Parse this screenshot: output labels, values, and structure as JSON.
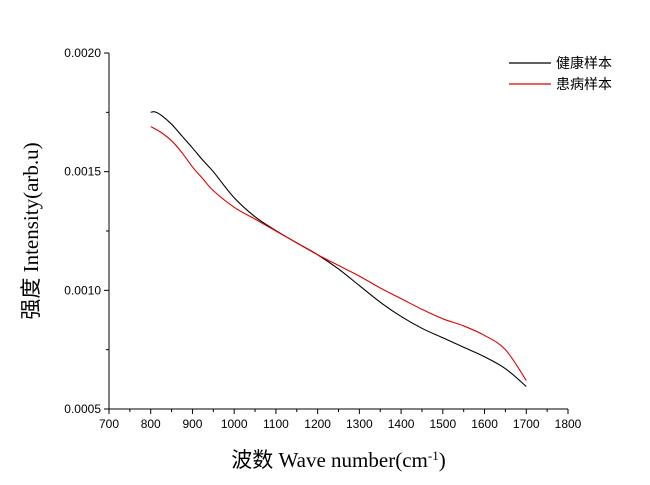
{
  "chart_data": {
    "type": "line",
    "title": "",
    "xlabel": "波数 Wave number(cm",
    "xlabel_sup": "-1",
    "xlabel_close": ")",
    "ylabel": "强度 Intensity(arb.u)",
    "xlim": [
      700,
      1800
    ],
    "ylim": [
      0.0005,
      0.002
    ],
    "x_ticks": [
      700,
      800,
      900,
      1000,
      1100,
      1200,
      1300,
      1400,
      1500,
      1600,
      1700,
      1800
    ],
    "y_ticks": [
      "0.0005",
      "0.0010",
      "0.0015",
      "0.0020"
    ],
    "grid": false,
    "legend_position": "top-right",
    "series": [
      {
        "name": "健康样本",
        "color": "#000000",
        "x": [
          800,
          810,
          825,
          850,
          875,
          900,
          925,
          950,
          1000,
          1050,
          1100,
          1150,
          1200,
          1250,
          1300,
          1350,
          1400,
          1450,
          1500,
          1550,
          1600,
          1650,
          1700
        ],
        "y": [
          0.00175,
          0.001752,
          0.001738,
          0.0017,
          0.00165,
          0.0016,
          0.001548,
          0.0015,
          0.00139,
          0.00131,
          0.001252,
          0.0012,
          0.00115,
          0.00109,
          0.00102,
          0.00095,
          0.00089,
          0.00084,
          0.0008,
          0.00076,
          0.00072,
          0.00067,
          0.000595
        ]
      },
      {
        "name": "患病样本",
        "color": "#e00000",
        "x": [
          800,
          825,
          850,
          875,
          900,
          925,
          950,
          1000,
          1050,
          1100,
          1150,
          1200,
          1250,
          1300,
          1350,
          1400,
          1450,
          1500,
          1550,
          1600,
          1650,
          1700
        ],
        "y": [
          0.00169,
          0.001665,
          0.00163,
          0.00158,
          0.00152,
          0.00147,
          0.00142,
          0.00135,
          0.0013,
          0.00125,
          0.0012,
          0.00115,
          0.001105,
          0.00106,
          0.00101,
          0.000965,
          0.00092,
          0.00088,
          0.00085,
          0.00081,
          0.00075,
          0.00062
        ]
      }
    ]
  }
}
